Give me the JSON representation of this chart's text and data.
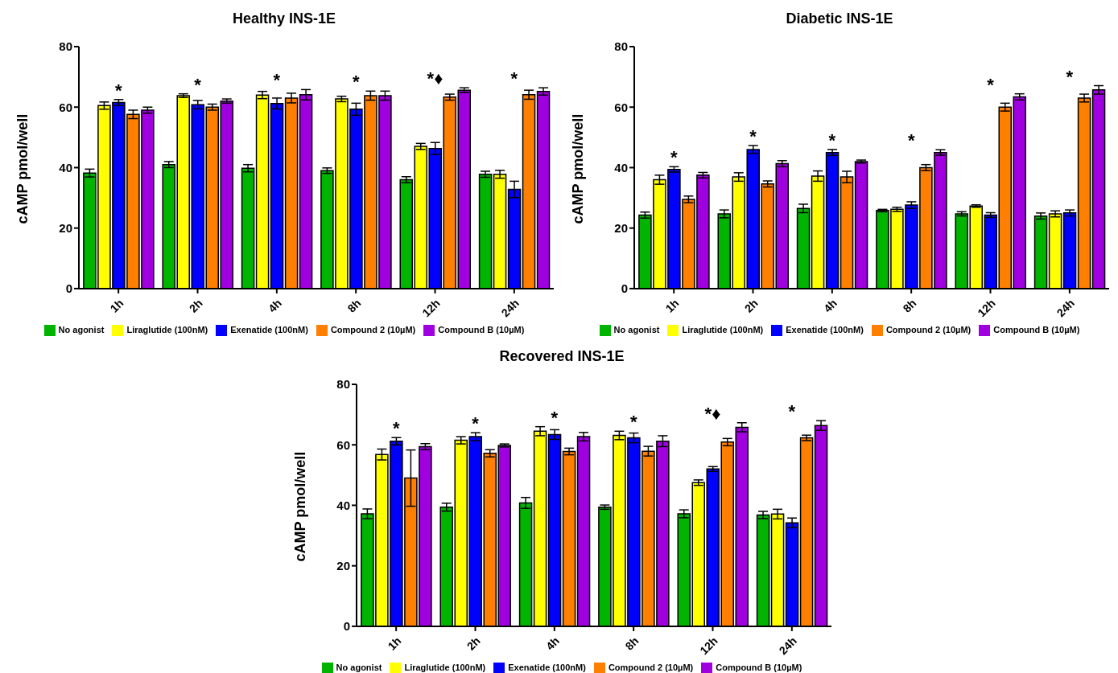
{
  "chart_data": [
    {
      "type": "bar",
      "title": "Healthy INS-1E",
      "ylabel": "cAMP pmol/well",
      "categories": [
        "1h",
        "2h",
        "4h",
        "8h",
        "12h",
        "24h"
      ],
      "ylim": [
        0,
        80
      ],
      "yticks": [
        0,
        20,
        40,
        60,
        80
      ],
      "grid": false,
      "legend": "bottom",
      "series": [
        {
          "name": "No agonist",
          "color": "#00b400",
          "values": [
            38.2,
            41,
            39.8,
            39,
            36,
            37.8
          ],
          "errors": [
            1.3,
            1,
            1.2,
            0.9,
            1,
            1
          ]
        },
        {
          "name": "Liraglutide (100nM)",
          "color": "#ffff00",
          "values": [
            60.5,
            63.8,
            64,
            62.7,
            47,
            37.8
          ],
          "errors": [
            1.2,
            0.6,
            1.2,
            0.9,
            1,
            1.3
          ]
        },
        {
          "name": "Exenatide (100nM)",
          "color": "#0000ff",
          "values": [
            61.5,
            60.8,
            61.2,
            59.3,
            46.3,
            32.8
          ],
          "errors": [
            1,
            1.4,
            1.8,
            2,
            2,
            2.7
          ]
        },
        {
          "name": "Compound 2 (10µM)",
          "color": "#ff7f00",
          "values": [
            57.6,
            60,
            63,
            63.8,
            63.3,
            64.1
          ],
          "errors": [
            1.4,
            1,
            1.6,
            1.5,
            1,
            1.5
          ]
        },
        {
          "name": "Compound B (10µM)",
          "color": "#a000e0",
          "values": [
            59,
            62,
            64.1,
            63.8,
            65.6,
            65.2
          ],
          "errors": [
            1,
            0.7,
            1.7,
            1.5,
            0.8,
            1.2
          ]
        }
      ],
      "annotations": [
        "*",
        "*",
        "*",
        "*",
        "*♦",
        "*"
      ]
    },
    {
      "type": "bar",
      "title": "Diabetic INS-1E",
      "ylabel": "cAMP pmol/well",
      "categories": [
        "1h",
        "2h",
        "4h",
        "8h",
        "12h",
        "24h"
      ],
      "ylim": [
        0,
        80
      ],
      "yticks": [
        0,
        20,
        40,
        60,
        80
      ],
      "grid": false,
      "legend": "bottom",
      "series": [
        {
          "name": "No agonist",
          "color": "#00b400",
          "values": [
            24.3,
            24.7,
            26.5,
            25.8,
            24.7,
            24
          ],
          "errors": [
            1,
            1.3,
            1.4,
            0.4,
            0.7,
            1
          ]
        },
        {
          "name": "Liraglutide (100nM)",
          "color": "#ffff00",
          "values": [
            36,
            36.9,
            37.2,
            26.2,
            27.3,
            24.7
          ],
          "errors": [
            1.5,
            1.4,
            1.7,
            0.7,
            0.4,
            1
          ]
        },
        {
          "name": "Exenatide (100nM)",
          "color": "#0000ff",
          "values": [
            39.4,
            46,
            45,
            27.6,
            24.3,
            25
          ],
          "errors": [
            0.9,
            1.3,
            1,
            1.1,
            0.8,
            1
          ]
        },
        {
          "name": "Compound 2 (10µM)",
          "color": "#ff7f00",
          "values": [
            29.5,
            34.6,
            36.9,
            40,
            60,
            63
          ],
          "errors": [
            1.1,
            1,
            1.9,
            1,
            1.3,
            1.3
          ]
        },
        {
          "name": "Compound B (10µM)",
          "color": "#a000e0",
          "values": [
            37.5,
            41.3,
            42,
            45,
            63.4,
            65.7
          ],
          "errors": [
            0.9,
            1,
            0.5,
            0.9,
            1,
            1.4
          ]
        }
      ],
      "annotations": [
        "*",
        "*",
        "*",
        "*",
        "*",
        "*"
      ]
    },
    {
      "type": "bar",
      "title": "Recovered INS-1E",
      "ylabel": "cAMP pmol/well",
      "categories": [
        "1h",
        "2h",
        "4h",
        "8h",
        "12h",
        "24h"
      ],
      "ylim": [
        0,
        80
      ],
      "yticks": [
        0,
        20,
        40,
        60,
        80
      ],
      "grid": false,
      "legend": "bottom",
      "series": [
        {
          "name": "No agonist",
          "color": "#00b400",
          "values": [
            37.2,
            39.4,
            40.8,
            39.4,
            37.2,
            36.8
          ],
          "errors": [
            1.6,
            1.3,
            1.8,
            0.7,
            1.3,
            1.2
          ]
        },
        {
          "name": "Liraglutide (100nM)",
          "color": "#ffff00",
          "values": [
            56.8,
            61.5,
            64.5,
            63.1,
            47.5,
            37.1
          ],
          "errors": [
            1.8,
            1.2,
            1.5,
            1.4,
            0.9,
            1.6
          ]
        },
        {
          "name": "Exenatide (100nM)",
          "color": "#0000ff",
          "values": [
            61.2,
            62.7,
            63.4,
            62.3,
            52,
            34.2
          ],
          "errors": [
            1.2,
            1.3,
            1.6,
            1.6,
            0.8,
            1.6
          ]
        },
        {
          "name": "Compound 2 (10µM)",
          "color": "#ff7f00",
          "values": [
            49,
            57.2,
            57.8,
            57.9,
            60.9,
            62.3
          ],
          "errors": [
            9.3,
            1.2,
            1.1,
            1.6,
            1.2,
            0.9
          ]
        },
        {
          "name": "Compound B (10µM)",
          "color": "#a000e0",
          "values": [
            59.4,
            59.8,
            62.7,
            61.2,
            65.8,
            66.4
          ],
          "errors": [
            1,
            0.5,
            1.4,
            1.8,
            1.5,
            1.6
          ]
        }
      ],
      "annotations": [
        "*",
        "*",
        "*",
        "*",
        "*♦",
        "*"
      ]
    }
  ]
}
